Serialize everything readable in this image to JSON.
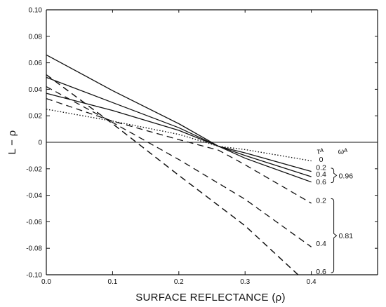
{
  "chart_data": {
    "type": "line",
    "xlabel": "SURFACE REFLECTANCE (ρ)",
    "ylabel": "L − ρ",
    "xlim": [
      0.0,
      0.5
    ],
    "ylim": [
      -0.1,
      0.1
    ],
    "x_ticks": [
      "0.0",
      "0.1",
      "0.2",
      "0.3",
      "0.4"
    ],
    "y_ticks": [
      "0.10",
      "0.08",
      "0.06",
      "0.04",
      "0.02",
      "0",
      "-0.02",
      "-0.04",
      "-0.06",
      "-0.08",
      "-0.10"
    ],
    "zero_line": true,
    "grid": false,
    "legend_header": {
      "tau": "τᴬ",
      "omega": "ωᴬ"
    },
    "series": [
      {
        "name": "0",
        "style": "dotted",
        "group": "",
        "x": [
          0.0,
          0.1,
          0.2,
          0.26,
          0.3,
          0.4
        ],
        "y": [
          0.025,
          0.016,
          0.006,
          -0.003,
          -0.0055,
          -0.014
        ]
      },
      {
        "name": "0.2",
        "style": "solid",
        "group": "0.96",
        "x": [
          0.0,
          0.1,
          0.2,
          0.26,
          0.3,
          0.4
        ],
        "y": [
          0.037,
          0.024,
          0.009,
          -0.003,
          -0.008,
          -0.022
        ]
      },
      {
        "name": "0.4",
        "style": "solid",
        "group": "0.96",
        "x": [
          0.0,
          0.1,
          0.2,
          0.26,
          0.3,
          0.4
        ],
        "y": [
          0.049,
          0.03,
          0.011,
          -0.003,
          -0.01,
          -0.026
        ]
      },
      {
        "name": "0.6",
        "style": "solid",
        "group": "0.96",
        "x": [
          0.0,
          0.1,
          0.2,
          0.26,
          0.3,
          0.4
        ],
        "y": [
          0.066,
          0.039,
          0.014,
          -0.003,
          -0.012,
          -0.03
        ]
      },
      {
        "name": "",
        "style": "dashed",
        "group": "0.81",
        "x": [
          0.0,
          0.1,
          0.2,
          0.26,
          0.3,
          0.4
        ],
        "y": [
          0.033,
          0.016,
          0.002,
          -0.006,
          -0.017,
          -0.046
        ]
      },
      {
        "name": "0.2",
        "style": "dashed",
        "group": "0.81",
        "x": [
          0.0,
          0.1,
          0.2,
          0.3,
          0.4
        ],
        "y": [
          0.042,
          0.015,
          -0.013,
          -0.043,
          -0.079
        ]
      },
      {
        "name": "0.4",
        "style": "dashed",
        "group": "0.81",
        "x": [
          0.0,
          0.1,
          0.2,
          0.3,
          0.38
        ],
        "y": [
          0.051,
          0.014,
          -0.025,
          -0.063,
          -0.1
        ]
      },
      {
        "name": "0.6",
        "style": "dashed",
        "group": "0.81",
        "x": [
          0.0,
          0.1,
          0.2,
          0.3,
          0.38
        ],
        "y": [
          0.051,
          0.014,
          -0.025,
          -0.063,
          -0.1
        ]
      }
    ],
    "label_rows": [
      {
        "text": "0",
        "y": -0.013
      },
      {
        "text": "0.2",
        "y": -0.019
      },
      {
        "text": "0.4",
        "y": -0.024
      },
      {
        "text": "0.6",
        "y": -0.03
      },
      {
        "text": "0.2",
        "y": -0.044
      },
      {
        "text": "0.4",
        "y": -0.0765
      },
      {
        "text": "0.6",
        "y": -0.0975
      }
    ],
    "brackets": [
      {
        "label": "0.96",
        "from": -0.0195,
        "to": -0.0305
      },
      {
        "label": "0.81",
        "from": -0.0425,
        "to": -0.0985
      }
    ]
  }
}
